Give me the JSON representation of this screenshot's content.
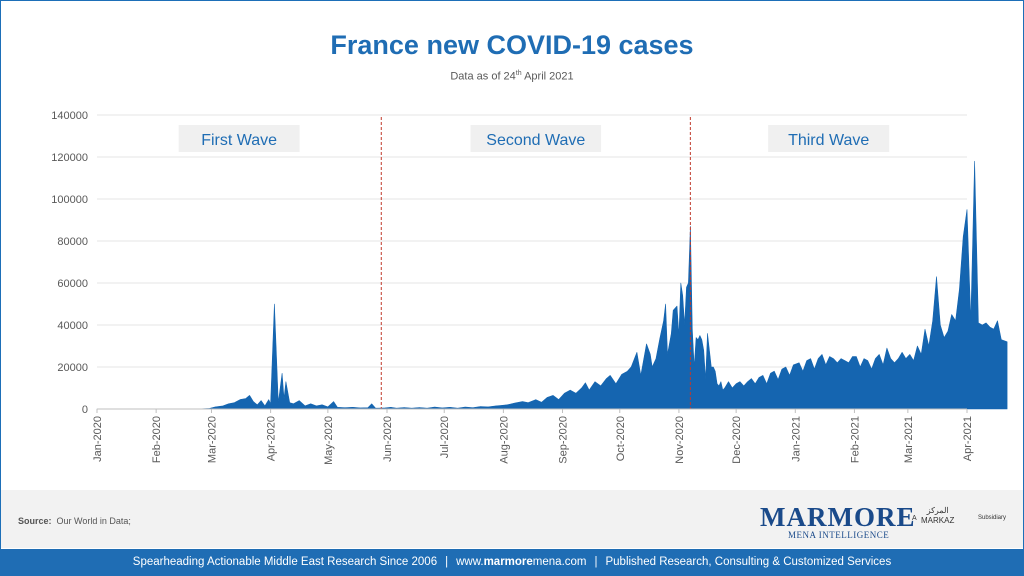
{
  "header": {
    "title": "France new COVID-19 cases",
    "subtitle_prefix": "Data as of 24",
    "subtitle_sup": "th",
    "subtitle_suffix": " April 2021"
  },
  "source": {
    "label": "Source:",
    "text": "Our World in Data;"
  },
  "logo": {
    "main": "MARMORE",
    "sub": "MENA INTELLIGENCE",
    "prefix": "A",
    "parent": "MARKAZ",
    "parent_arabic": "المركز",
    "suffix": "Subsidiary"
  },
  "footer": {
    "left": "Spearheading Actionable Middle East Research Since 2006",
    "url_prefix": "www.",
    "url_bold": "marmore",
    "url_suffix": "mena.com",
    "right": "Published Research, Consulting & Customized Services",
    "separator": "|"
  },
  "colors": {
    "accent": "#1f6db4",
    "area": "#1565b0",
    "divider": "#c0392b",
    "wave_box": "#f0f0f0"
  },
  "chart_data": {
    "type": "area",
    "title": "France new COVID-19 cases",
    "xlabel": "",
    "ylabel": "",
    "ylim": [
      0,
      140000
    ],
    "y_ticks": [
      "0",
      "20000",
      "40000",
      "60000",
      "80000",
      "100000",
      "120000",
      "140000"
    ],
    "x_range": [
      "2020-01-01",
      "2021-04-01"
    ],
    "x_ticks": [
      {
        "label": "Jan-2020",
        "date": "2020-01-01"
      },
      {
        "label": "Feb-2020",
        "date": "2020-02-01"
      },
      {
        "label": "Mar-2020",
        "date": "2020-03-01"
      },
      {
        "label": "Apr-2020",
        "date": "2020-04-01"
      },
      {
        "label": "May-2020",
        "date": "2020-05-01"
      },
      {
        "label": "Jun-2020",
        "date": "2020-06-01"
      },
      {
        "label": "Jul-2020",
        "date": "2020-07-01"
      },
      {
        "label": "Aug-2020",
        "date": "2020-08-01"
      },
      {
        "label": "Sep-2020",
        "date": "2020-09-01"
      },
      {
        "label": "Oct-2020",
        "date": "2020-10-01"
      },
      {
        "label": "Nov-2020",
        "date": "2020-11-01"
      },
      {
        "label": "Dec-2020",
        "date": "2020-12-01"
      },
      {
        "label": "Jan-2021",
        "date": "2021-01-01"
      },
      {
        "label": "Feb-2021",
        "date": "2021-02-01"
      },
      {
        "label": "Mar-2021",
        "date": "2021-03-01"
      },
      {
        "label": "Apr-2021",
        "date": "2021-04-01"
      }
    ],
    "grid": true,
    "waves": [
      {
        "label": "First Wave",
        "start": "2020-01-01",
        "end": "2020-05-29"
      },
      {
        "label": "Second Wave",
        "start": "2020-05-29",
        "end": "2020-11-07"
      },
      {
        "label": "Third Wave",
        "start": "2020-11-07",
        "end": "2021-04-01"
      }
    ],
    "wave_dividers": [
      "2020-05-29",
      "2020-11-07"
    ],
    "series": [
      {
        "points": [
          [
            "2020-01-01",
            0
          ],
          [
            "2020-02-20",
            0
          ],
          [
            "2020-02-25",
            100
          ],
          [
            "2020-02-29",
            300
          ],
          [
            "2020-03-03",
            1000
          ],
          [
            "2020-03-07",
            1500
          ],
          [
            "2020-03-10",
            2500
          ],
          [
            "2020-03-13",
            3000
          ],
          [
            "2020-03-16",
            4500
          ],
          [
            "2020-03-19",
            5000
          ],
          [
            "2020-03-21",
            6500
          ],
          [
            "2020-03-23",
            3500
          ],
          [
            "2020-03-25",
            2000
          ],
          [
            "2020-03-27",
            4000
          ],
          [
            "2020-03-29",
            1500
          ],
          [
            "2020-03-31",
            4500
          ],
          [
            "2020-04-01",
            2500
          ],
          [
            "2020-04-03",
            50000
          ],
          [
            "2020-04-05",
            3000
          ],
          [
            "2020-04-07",
            17000
          ],
          [
            "2020-04-08",
            5000
          ],
          [
            "2020-04-09",
            13000
          ],
          [
            "2020-04-11",
            3000
          ],
          [
            "2020-04-13",
            2500
          ],
          [
            "2020-04-16",
            4000
          ],
          [
            "2020-04-19",
            1500
          ],
          [
            "2020-04-22",
            2500
          ],
          [
            "2020-04-25",
            1500
          ],
          [
            "2020-04-28",
            2000
          ],
          [
            "2020-05-01",
            1000
          ],
          [
            "2020-05-04",
            3500
          ],
          [
            "2020-05-06",
            800
          ],
          [
            "2020-05-10",
            600
          ],
          [
            "2020-05-14",
            800
          ],
          [
            "2020-05-18",
            500
          ],
          [
            "2020-05-22",
            600
          ],
          [
            "2020-05-24",
            2500
          ],
          [
            "2020-05-26",
            400
          ],
          [
            "2020-05-31",
            500
          ],
          [
            "2020-06-03",
            800
          ],
          [
            "2020-06-06",
            400
          ],
          [
            "2020-06-10",
            700
          ],
          [
            "2020-06-14",
            400
          ],
          [
            "2020-06-18",
            700
          ],
          [
            "2020-06-22",
            400
          ],
          [
            "2020-06-26",
            900
          ],
          [
            "2020-06-30",
            500
          ],
          [
            "2020-07-04",
            800
          ],
          [
            "2020-07-08",
            400
          ],
          [
            "2020-07-12",
            900
          ],
          [
            "2020-07-16",
            600
          ],
          [
            "2020-07-20",
            1200
          ],
          [
            "2020-07-24",
            1000
          ],
          [
            "2020-07-28",
            1500
          ],
          [
            "2020-07-31",
            1700
          ],
          [
            "2020-08-03",
            2000
          ],
          [
            "2020-08-07",
            2800
          ],
          [
            "2020-08-11",
            3500
          ],
          [
            "2020-08-14",
            3000
          ],
          [
            "2020-08-18",
            4500
          ],
          [
            "2020-08-21",
            3200
          ],
          [
            "2020-08-24",
            5500
          ],
          [
            "2020-08-27",
            6500
          ],
          [
            "2020-08-30",
            4500
          ],
          [
            "2020-09-02",
            7500
          ],
          [
            "2020-09-05",
            9000
          ],
          [
            "2020-09-08",
            7500
          ],
          [
            "2020-09-11",
            10000
          ],
          [
            "2020-09-13",
            12500
          ],
          [
            "2020-09-15",
            9000
          ],
          [
            "2020-09-18",
            13000
          ],
          [
            "2020-09-21",
            11000
          ],
          [
            "2020-09-24",
            14500
          ],
          [
            "2020-09-26",
            16000
          ],
          [
            "2020-09-29",
            12000
          ],
          [
            "2020-10-02",
            16500
          ],
          [
            "2020-10-05",
            18000
          ],
          [
            "2020-10-07",
            20000
          ],
          [
            "2020-10-10",
            27000
          ],
          [
            "2020-10-12",
            16000
          ],
          [
            "2020-10-15",
            31000
          ],
          [
            "2020-10-17",
            26000
          ],
          [
            "2020-10-18",
            20000
          ],
          [
            "2020-10-20",
            24000
          ],
          [
            "2020-10-22",
            33500
          ],
          [
            "2020-10-24",
            42000
          ],
          [
            "2020-10-25",
            50000
          ],
          [
            "2020-10-26",
            26000
          ],
          [
            "2020-10-28",
            36000
          ],
          [
            "2020-10-29",
            47000
          ],
          [
            "2020-10-31",
            49000
          ],
          [
            "2020-11-01",
            35000
          ],
          [
            "2020-11-02",
            60000
          ],
          [
            "2020-11-03",
            54000
          ],
          [
            "2020-11-04",
            40000
          ],
          [
            "2020-11-05",
            58000
          ],
          [
            "2020-11-06",
            60000
          ],
          [
            "2020-11-07",
            87000
          ],
          [
            "2020-11-08",
            38000
          ],
          [
            "2020-11-09",
            20000
          ],
          [
            "2020-11-10",
            34000
          ],
          [
            "2020-11-11",
            33000
          ],
          [
            "2020-11-12",
            35000
          ],
          [
            "2020-11-13",
            33000
          ],
          [
            "2020-11-14",
            28000
          ],
          [
            "2020-11-15",
            14000
          ],
          [
            "2020-11-16",
            36000
          ],
          [
            "2020-11-17",
            28000
          ],
          [
            "2020-11-18",
            20000
          ],
          [
            "2020-11-19",
            20000
          ],
          [
            "2020-11-20",
            18000
          ],
          [
            "2020-11-21",
            12000
          ],
          [
            "2020-11-22",
            11000
          ],
          [
            "2020-11-23",
            13000
          ],
          [
            "2020-11-24",
            9000
          ],
          [
            "2020-11-25",
            10000
          ],
          [
            "2020-11-27",
            13000
          ],
          [
            "2020-11-29",
            10000
          ],
          [
            "2020-12-01",
            12000
          ],
          [
            "2020-12-03",
            13000
          ],
          [
            "2020-12-05",
            11000
          ],
          [
            "2020-12-07",
            13000
          ],
          [
            "2020-12-09",
            14500
          ],
          [
            "2020-12-11",
            12000
          ],
          [
            "2020-12-13",
            15000
          ],
          [
            "2020-12-15",
            16000
          ],
          [
            "2020-12-17",
            12000
          ],
          [
            "2020-12-19",
            17000
          ],
          [
            "2020-12-21",
            18000
          ],
          [
            "2020-12-23",
            14000
          ],
          [
            "2020-12-25",
            19000
          ],
          [
            "2020-12-27",
            20000
          ],
          [
            "2020-12-29",
            16000
          ],
          [
            "2020-12-31",
            21000
          ],
          [
            "2021-01-03",
            22000
          ],
          [
            "2021-01-05",
            18000
          ],
          [
            "2021-01-07",
            23000
          ],
          [
            "2021-01-09",
            24000
          ],
          [
            "2021-01-11",
            19000
          ],
          [
            "2021-01-13",
            24000
          ],
          [
            "2021-01-15",
            26000
          ],
          [
            "2021-01-17",
            21000
          ],
          [
            "2021-01-19",
            25000
          ],
          [
            "2021-01-21",
            24000
          ],
          [
            "2021-01-23",
            22000
          ],
          [
            "2021-01-25",
            24000
          ],
          [
            "2021-01-27",
            23000
          ],
          [
            "2021-01-29",
            22000
          ],
          [
            "2021-01-31",
            25000
          ],
          [
            "2021-02-02",
            25000
          ],
          [
            "2021-02-04",
            20000
          ],
          [
            "2021-02-06",
            24000
          ],
          [
            "2021-02-08",
            23000
          ],
          [
            "2021-02-10",
            19000
          ],
          [
            "2021-02-12",
            24000
          ],
          [
            "2021-02-14",
            26000
          ],
          [
            "2021-02-16",
            21000
          ],
          [
            "2021-02-18",
            29000
          ],
          [
            "2021-02-20",
            24000
          ],
          [
            "2021-02-22",
            22000
          ],
          [
            "2021-02-24",
            24000
          ],
          [
            "2021-02-26",
            27000
          ],
          [
            "2021-02-28",
            24000
          ],
          [
            "2021-03-02",
            26000
          ],
          [
            "2021-03-04",
            23000
          ],
          [
            "2021-03-06",
            30000
          ],
          [
            "2021-03-08",
            26000
          ],
          [
            "2021-03-10",
            38000
          ],
          [
            "2021-03-12",
            30000
          ],
          [
            "2021-03-14",
            42000
          ],
          [
            "2021-03-16",
            63000
          ],
          [
            "2021-03-18",
            40000
          ],
          [
            "2021-03-20",
            34000
          ],
          [
            "2021-03-22",
            37000
          ],
          [
            "2021-03-24",
            45000
          ],
          [
            "2021-03-26",
            42000
          ],
          [
            "2021-03-28",
            57000
          ],
          [
            "2021-03-30",
            82000
          ],
          [
            "2021-04-01",
            95000
          ],
          [
            "2021-04-03",
            42000
          ],
          [
            "2021-04-05",
            118000
          ],
          [
            "2021-04-07",
            41000
          ],
          [
            "2021-04-09",
            40000
          ],
          [
            "2021-04-11",
            41000
          ],
          [
            "2021-04-13",
            39000
          ],
          [
            "2021-04-15",
            38000
          ],
          [
            "2021-04-17",
            42000
          ],
          [
            "2021-04-19",
            33000
          ],
          [
            "2021-04-22",
            32000
          ]
        ]
      }
    ]
  }
}
